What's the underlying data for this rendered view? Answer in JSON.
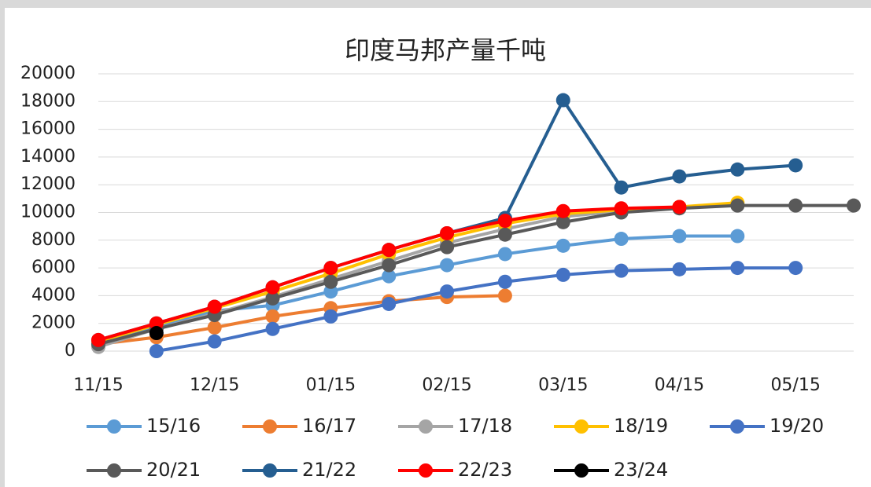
{
  "chart_data": {
    "type": "line",
    "title": "印度马邦产量千吨",
    "categories": [
      "11/15",
      null,
      "12/15",
      null,
      "01/15",
      null,
      "02/15",
      null,
      "03/15",
      null,
      "04/15",
      null,
      "05/15",
      null
    ],
    "series": [
      {
        "name": "15/16",
        "color": "#5B9BD5",
        "values": [
          500,
          1800,
          2900,
          3300,
          4300,
          5400,
          6200,
          7000,
          7600,
          8100,
          8300,
          8300,
          null,
          null
        ]
      },
      {
        "name": "16/17",
        "color": "#ED7D31",
        "values": [
          500,
          1000,
          1700,
          2500,
          3100,
          3600,
          3900,
          4000,
          null,
          null,
          null,
          null,
          null,
          null
        ]
      },
      {
        "name": "17/18",
        "color": "#A5A5A5",
        "values": [
          300,
          1600,
          2700,
          3900,
          5200,
          6500,
          7800,
          8800,
          9700,
          10100,
          10400,
          10600,
          null,
          null
        ]
      },
      {
        "name": "18/19",
        "color": "#FFC000",
        "values": [
          700,
          1900,
          3100,
          4300,
          5600,
          7000,
          8200,
          9200,
          9900,
          10200,
          10400,
          10700,
          null,
          null
        ]
      },
      {
        "name": "19/20",
        "color": "#4472C4",
        "values": [
          null,
          0,
          700,
          1600,
          2500,
          3400,
          4300,
          5000,
          5500,
          5800,
          5900,
          6000,
          6000,
          null
        ]
      },
      {
        "name": "20/21",
        "color": "#595959",
        "values": [
          500,
          1600,
          2600,
          3800,
          5000,
          6200,
          7500,
          8400,
          9300,
          10000,
          10300,
          10500,
          10500,
          10500
        ]
      },
      {
        "name": "21/22",
        "color": "#255E91",
        "values": [
          800,
          2000,
          3200,
          4600,
          6000,
          7300,
          8500,
          9600,
          18100,
          11800,
          12600,
          13100,
          13400,
          null
        ]
      },
      {
        "name": "22/23",
        "color": "#FF0000",
        "values": [
          800,
          2000,
          3200,
          4600,
          6000,
          7300,
          8500,
          9400,
          10100,
          10300,
          10400,
          null,
          null,
          null
        ]
      },
      {
        "name": "23/24",
        "color": "#000000",
        "values": [
          null,
          1300,
          null,
          null,
          null,
          null,
          null,
          null,
          null,
          null,
          null,
          null,
          null,
          null
        ]
      }
    ],
    "ylim": [
      0,
      20000
    ],
    "yticks": [
      0,
      2000,
      4000,
      6000,
      8000,
      10000,
      12000,
      14000,
      16000,
      18000,
      20000
    ],
    "grid": true
  }
}
